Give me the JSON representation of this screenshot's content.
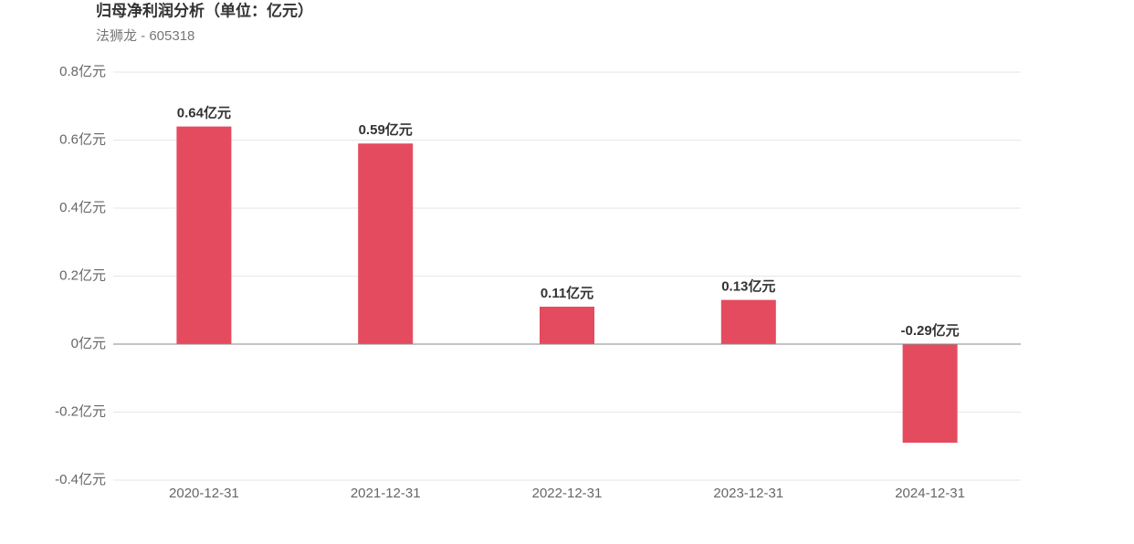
{
  "chart_data": {
    "type": "bar",
    "title": "归母净利润分析（单位：亿元）",
    "subtitle": "法狮龙 - 605318",
    "categories": [
      "2020-12-31",
      "2021-12-31",
      "2022-12-31",
      "2023-12-31",
      "2024-12-31"
    ],
    "values": [
      0.64,
      0.59,
      0.11,
      0.13,
      -0.29
    ],
    "value_labels": [
      "0.64亿元",
      "0.59亿元",
      "0.11亿元",
      "0.13亿元",
      "-0.29亿元"
    ],
    "color": "#e54b5f",
    "ylim": [
      -0.4,
      0.8
    ],
    "yticks": [
      {
        "value": -0.4,
        "label": "-0.4亿元"
      },
      {
        "value": -0.2,
        "label": "-0.2亿元"
      },
      {
        "value": 0,
        "label": "0亿元"
      },
      {
        "value": 0.2,
        "label": "0.2亿元"
      },
      {
        "value": 0.4,
        "label": "0.4亿元"
      },
      {
        "value": 0.6,
        "label": "0.6亿元"
      },
      {
        "value": 0.8,
        "label": "0.8亿元"
      }
    ],
    "grid": true
  }
}
